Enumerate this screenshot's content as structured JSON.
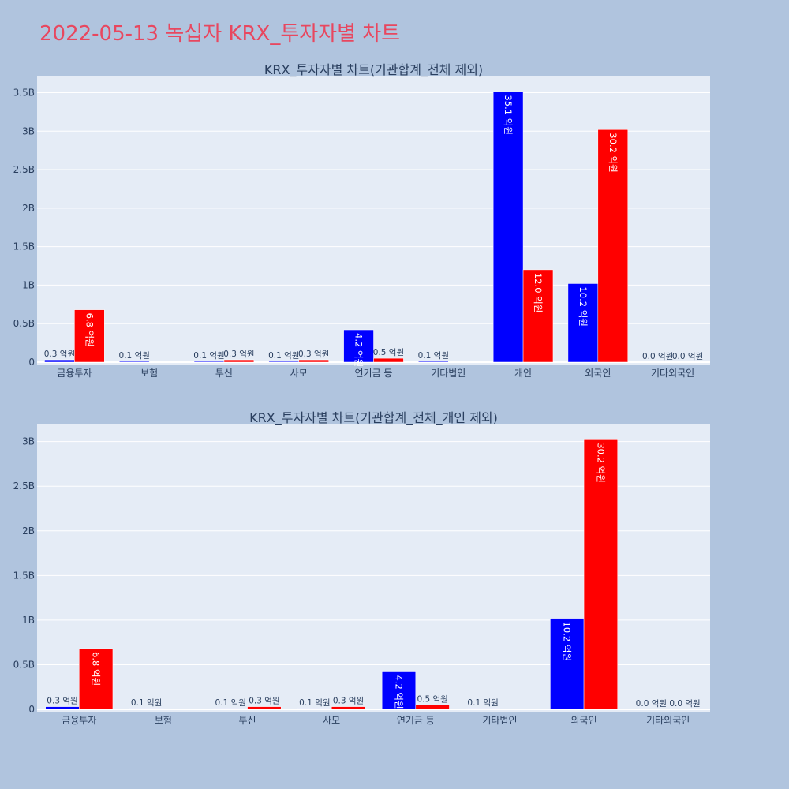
{
  "title": "2022-05-13 녹십자 KRX_투자자별 차트",
  "colors": {
    "buy": "#0000ff",
    "sell": "#ff0000",
    "plot_bg": "#e5ecf6",
    "page_bg": "#b0c4de",
    "title": "#e8475f"
  },
  "chart_data": [
    {
      "type": "bar",
      "title": "KRX_투자자별 차트(기관합계_전체 제외)",
      "categories": [
        "금융투자",
        "보험",
        "투신",
        "사모",
        "연기금 등",
        "기타법인",
        "개인",
        "외국인",
        "기타외국인"
      ],
      "series": [
        {
          "values": [
            0.03,
            0.01,
            0.01,
            0.01,
            0.42,
            0.01,
            3.51,
            1.02,
            0.0
          ],
          "labels": [
            "0.3 억원",
            "0.1 억원",
            "0.1 억원",
            "0.1 억원",
            "4.2 억원",
            "0.1 억원",
            "35.1 억원",
            "10.2 억원",
            "0.0 억원"
          ]
        },
        {
          "values": [
            0.68,
            0.0,
            0.03,
            0.03,
            0.05,
            0.0,
            1.2,
            3.02,
            0.0
          ],
          "labels": [
            "6.8 억원",
            "",
            "0.3 억원",
            "0.3 억원",
            "0.5 억원",
            "",
            "12.0 억원",
            "30.2 억원",
            "0.0 억원"
          ]
        }
      ],
      "yticks": [
        0,
        0.5,
        1,
        1.5,
        2,
        2.5,
        3,
        3.5
      ],
      "ytick_labels": [
        "0",
        "0.5B",
        "1B",
        "1.5B",
        "2B",
        "2.5B",
        "3B",
        "3.5B"
      ],
      "ylim": [
        0,
        3.72
      ],
      "grid": true
    },
    {
      "type": "bar",
      "title": "KRX_투자자별 차트(기관합계_전체_개인 제외)",
      "categories": [
        "금융투자",
        "보험",
        "투신",
        "사모",
        "연기금 등",
        "기타법인",
        "외국인",
        "기타외국인"
      ],
      "series": [
        {
          "values": [
            0.03,
            0.01,
            0.01,
            0.01,
            0.42,
            0.01,
            1.02,
            0.0
          ],
          "labels": [
            "0.3 억원",
            "0.1 억원",
            "0.1 억원",
            "0.1 억원",
            "4.2 억원",
            "0.1 억원",
            "10.2 억원",
            "0.0 억원"
          ]
        },
        {
          "values": [
            0.68,
            0.0,
            0.03,
            0.03,
            0.05,
            0.0,
            3.02,
            0.0
          ],
          "labels": [
            "6.8 억원",
            "",
            "0.3 억원",
            "0.3 억원",
            "0.5 억원",
            "",
            "30.2 억원",
            "0.0 억원"
          ]
        }
      ],
      "yticks": [
        0,
        0.5,
        1,
        1.5,
        2,
        2.5,
        3
      ],
      "ytick_labels": [
        "0",
        "0.5B",
        "1B",
        "1.5B",
        "2B",
        "2.5B",
        "3B"
      ],
      "ylim": [
        0,
        3.2
      ],
      "grid": true
    }
  ]
}
